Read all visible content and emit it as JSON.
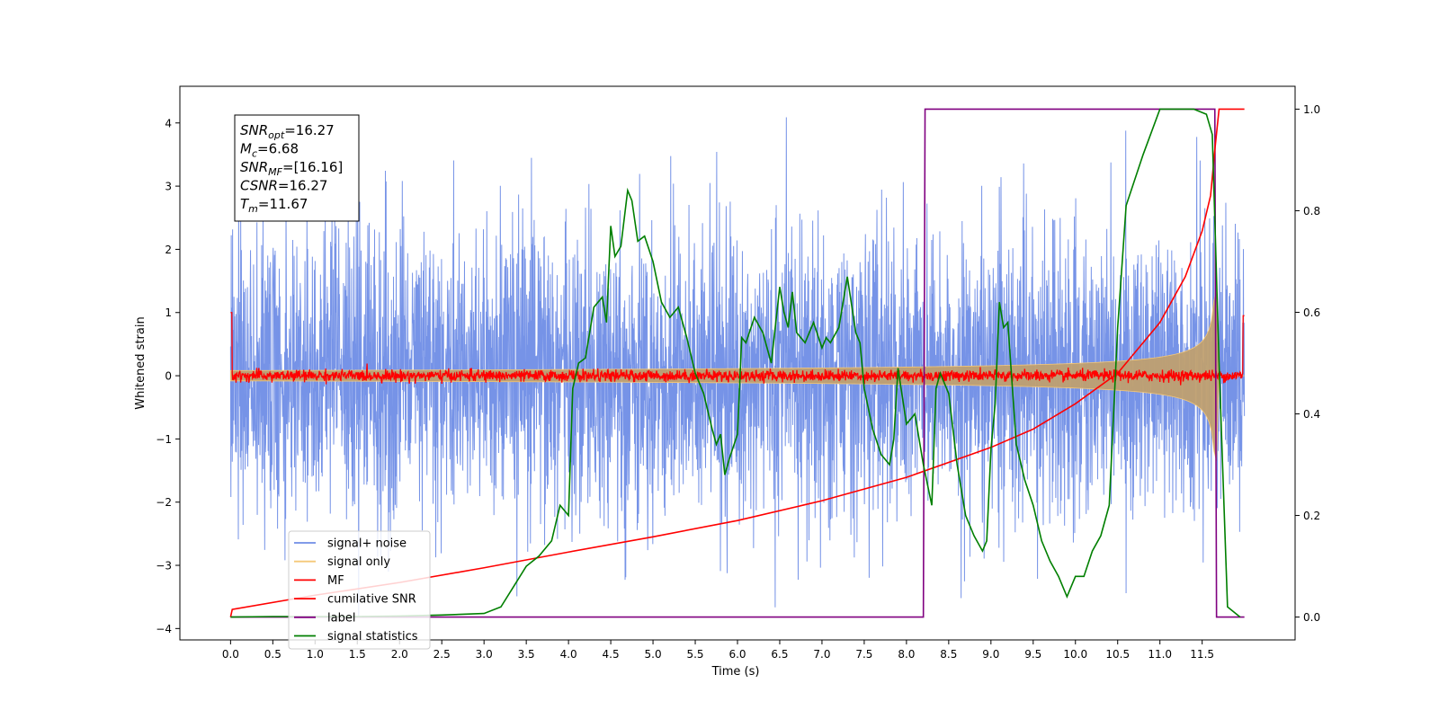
{
  "chart_data": {
    "type": "line",
    "xlabel": "Time (s)",
    "ylabel": "Whitened strain",
    "xlim": [
      -0.6,
      12.6
    ],
    "ylim": [
      -4.18,
      4.58
    ],
    "y2lim": [
      -0.045,
      1.045
    ],
    "xticks": [
      0.0,
      0.5,
      1.0,
      1.5,
      2.0,
      2.5,
      3.0,
      3.5,
      4.0,
      4.5,
      5.0,
      5.5,
      6.0,
      6.5,
      7.0,
      7.5,
      8.0,
      8.5,
      9.0,
      9.5,
      10.0,
      10.5,
      11.0,
      11.5
    ],
    "xtick_labels": [
      "0.0",
      "0.5",
      "1.0",
      "1.5",
      "2.0",
      "2.5",
      "3.0",
      "3.5",
      "4.0",
      "4.5",
      "5.0",
      "5.5",
      "6.0",
      "6.5",
      "7.0",
      "7.5",
      "8.0",
      "8.5",
      "9.0",
      "9.5",
      "10.0",
      "10.5",
      "11.0",
      "11.5"
    ],
    "yticks": [
      4,
      3,
      2,
      1,
      0,
      -1,
      -2,
      -3,
      -4
    ],
    "ytick_labels": [
      "4",
      "3",
      "2",
      "1",
      "0",
      "−1",
      "−2",
      "−3",
      "−4"
    ],
    "y2ticks": [
      1.0,
      0.8,
      0.6,
      0.4,
      0.2,
      0.0
    ],
    "y2tick_labels": [
      "1.0",
      "0.8",
      "0.6",
      "0.4",
      "0.2",
      "0.0"
    ],
    "duration": 12.0,
    "merger_time": 11.67,
    "annotation": [
      {
        "sym": "SNR",
        "sub": "opt",
        "val": "=16.27"
      },
      {
        "sym": "M",
        "sub": "c",
        "val": "=6.68"
      },
      {
        "sym": "SNR",
        "sub": "MF",
        "val": "=[16.16]"
      },
      {
        "sym": "CSNR",
        "sub": "",
        "val": "=16.27"
      },
      {
        "sym": "T",
        "sub": "m",
        "val": "=11.67"
      }
    ],
    "legend": {
      "placement": "lower-left",
      "entries": [
        {
          "label": "signal+ noise",
          "color": "#6f8de6"
        },
        {
          "label": "signal only",
          "color": "#f5c878"
        },
        {
          "label": "MF",
          "color": "#ff0000"
        },
        {
          "label": "cumilative SNR",
          "color": "#ff0000"
        },
        {
          "label": "label",
          "color": "#800080"
        },
        {
          "label": "signal statistics",
          "color": "#007f00"
        }
      ]
    },
    "series": [
      {
        "name": "label",
        "axis": "right",
        "color": "#800080",
        "x": [
          0.0,
          8.2,
          8.22,
          11.65,
          11.67,
          12.0
        ],
        "y": [
          0.0,
          0.0,
          1.0,
          1.0,
          0.0,
          0.0
        ]
      },
      {
        "name": "cumilative SNR",
        "axis": "right",
        "color": "#ff0000",
        "x": [
          0.0,
          0.02,
          1.0,
          2.0,
          3.0,
          4.0,
          5.0,
          6.0,
          7.0,
          8.0,
          9.0,
          9.5,
          10.0,
          10.5,
          11.0,
          11.3,
          11.5,
          11.6,
          11.65,
          11.7,
          12.0
        ],
        "y": [
          0.0,
          0.015,
          0.043,
          0.068,
          0.097,
          0.128,
          0.158,
          0.19,
          0.229,
          0.275,
          0.334,
          0.37,
          0.42,
          0.48,
          0.58,
          0.67,
          0.76,
          0.83,
          0.92,
          1.0,
          1.0
        ]
      },
      {
        "name": "signal statistics",
        "axis": "right",
        "color": "#007f00",
        "x": [
          0.0,
          0.5,
          1.0,
          1.5,
          2.0,
          2.5,
          3.0,
          3.2,
          3.35,
          3.5,
          3.65,
          3.8,
          3.9,
          4.0,
          4.05,
          4.12,
          4.2,
          4.3,
          4.4,
          4.45,
          4.5,
          4.55,
          4.62,
          4.7,
          4.75,
          4.82,
          4.9,
          5.0,
          5.1,
          5.2,
          5.3,
          5.4,
          5.5,
          5.6,
          5.7,
          5.75,
          5.8,
          5.85,
          5.9,
          6.0,
          6.05,
          6.1,
          6.2,
          6.3,
          6.4,
          6.5,
          6.55,
          6.6,
          6.65,
          6.7,
          6.8,
          6.9,
          7.0,
          7.05,
          7.1,
          7.2,
          7.3,
          7.4,
          7.45,
          7.5,
          7.6,
          7.7,
          7.8,
          7.85,
          7.9,
          8.0,
          8.1,
          8.2,
          8.25,
          8.3,
          8.35,
          8.4,
          8.5,
          8.6,
          8.7,
          8.8,
          8.9,
          8.95,
          9.0,
          9.05,
          9.1,
          9.15,
          9.2,
          9.3,
          9.4,
          9.5,
          9.6,
          9.7,
          9.8,
          9.9,
          10.0,
          10.1,
          10.2,
          10.3,
          10.4,
          10.5,
          10.6,
          10.8,
          11.0,
          11.2,
          11.4,
          11.55,
          11.62,
          11.7,
          11.8,
          11.95
        ],
        "y": [
          0.0,
          0.001,
          0.001,
          0.001,
          0.002,
          0.004,
          0.007,
          0.02,
          0.06,
          0.1,
          0.12,
          0.15,
          0.22,
          0.2,
          0.45,
          0.5,
          0.51,
          0.61,
          0.63,
          0.58,
          0.77,
          0.71,
          0.73,
          0.84,
          0.82,
          0.74,
          0.75,
          0.7,
          0.62,
          0.59,
          0.61,
          0.55,
          0.48,
          0.44,
          0.37,
          0.34,
          0.36,
          0.28,
          0.31,
          0.36,
          0.55,
          0.54,
          0.59,
          0.56,
          0.5,
          0.65,
          0.6,
          0.57,
          0.64,
          0.56,
          0.54,
          0.58,
          0.53,
          0.55,
          0.54,
          0.57,
          0.67,
          0.56,
          0.54,
          0.45,
          0.37,
          0.32,
          0.3,
          0.35,
          0.49,
          0.38,
          0.4,
          0.3,
          0.26,
          0.22,
          0.45,
          0.48,
          0.44,
          0.3,
          0.2,
          0.16,
          0.13,
          0.15,
          0.33,
          0.42,
          0.62,
          0.57,
          0.58,
          0.34,
          0.27,
          0.22,
          0.15,
          0.11,
          0.08,
          0.04,
          0.08,
          0.08,
          0.13,
          0.16,
          0.22,
          0.57,
          0.81,
          0.91,
          1.0,
          1.0,
          1.0,
          0.99,
          0.95,
          0.5,
          0.02,
          0.0
        ]
      }
    ]
  }
}
